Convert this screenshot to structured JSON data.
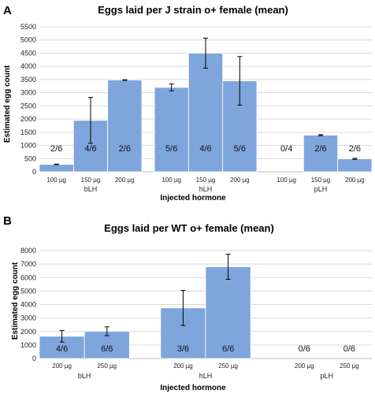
{
  "chart_data": [
    {
      "panel_label": "A",
      "type": "bar",
      "title": "Eggs laid per J strain o+ female (mean)",
      "xlabel": "Injected hormone",
      "ylabel": "Estimated egg count",
      "ylim": [
        0,
        5500
      ],
      "yticks": [
        "0",
        "500",
        "1000",
        "1500",
        "2000",
        "2500",
        "3000",
        "3500",
        "4000",
        "4500",
        "5000",
        "5500"
      ],
      "grid": true,
      "bar_color": "#7EA6DC",
      "groups": [
        {
          "name": "bLH",
          "categories": [
            "100 µg",
            "150 µg",
            "200 µg"
          ],
          "values": [
            280,
            1950,
            3480
          ],
          "errors": [
            10,
            870,
            10
          ],
          "labels": [
            "2/6",
            "4/6",
            "2/6"
          ]
        },
        {
          "name": "hLH",
          "categories": [
            "100 µg",
            "150 µg",
            "200 µg"
          ],
          "values": [
            3200,
            4500,
            3450
          ],
          "errors": [
            130,
            570,
            920
          ],
          "labels": [
            "5/6",
            "4/6",
            "5/6"
          ]
        },
        {
          "name": "pLH",
          "categories": [
            "100 µg",
            "150 µg",
            "200 µg"
          ],
          "values": [
            0,
            1390,
            490
          ],
          "errors": [
            0,
            20,
            20
          ],
          "labels": [
            "0/4",
            "2/6",
            "2/6"
          ]
        }
      ]
    },
    {
      "panel_label": "B",
      "type": "bar",
      "title": "Eggs laid per WT o+ female (mean)",
      "xlabel": "Injected hormone",
      "ylabel": "Estimated egg count",
      "ylim": [
        0,
        8000
      ],
      "yticks": [
        "0",
        "1000",
        "2000",
        "3000",
        "4000",
        "5000",
        "6000",
        "7000",
        "8000"
      ],
      "grid": true,
      "bar_color": "#7EA6DC",
      "groups": [
        {
          "name": "bLH",
          "categories": [
            "200 µg",
            "250 µg"
          ],
          "values": [
            1650,
            2020
          ],
          "errors": [
            430,
            330
          ],
          "labels": [
            "4/6",
            "6/6"
          ]
        },
        {
          "name": "hLH",
          "categories": [
            "200 µg",
            "250 µg"
          ],
          "values": [
            3750,
            6800
          ],
          "errors": [
            1300,
            930
          ],
          "labels": [
            "3/6",
            "6/6"
          ]
        },
        {
          "name": "pLH",
          "categories": [
            "200 µg",
            "250 µg"
          ],
          "values": [
            0,
            0
          ],
          "errors": [
            0,
            0
          ],
          "labels": [
            "0/6",
            "0/6"
          ]
        }
      ]
    }
  ]
}
